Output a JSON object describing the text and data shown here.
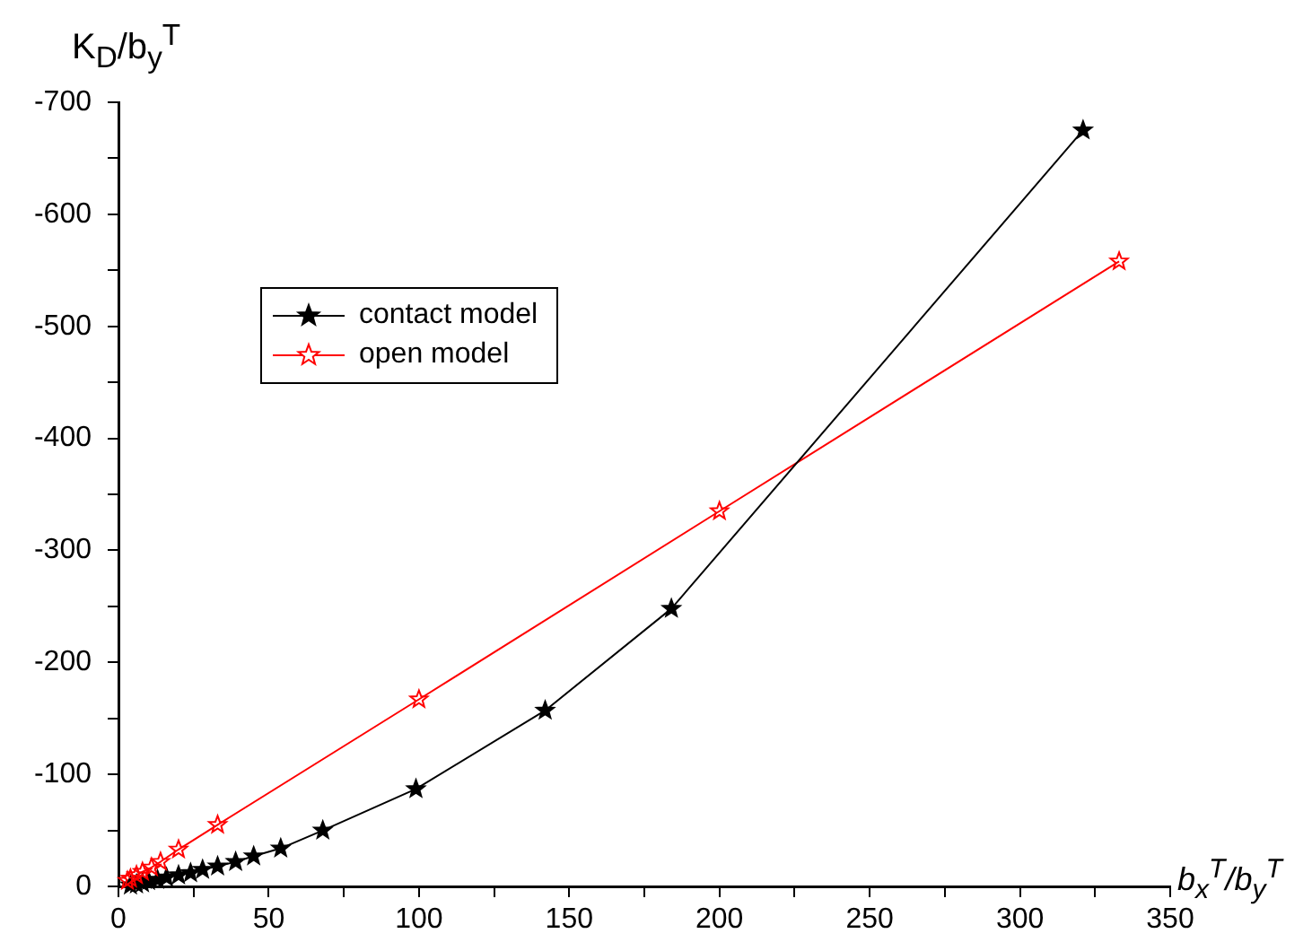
{
  "chart_data": {
    "type": "line",
    "xlabel": "b$_{x}$$^{T}$/b$_{y}$$^{T}$",
    "ylabel": "K$_{D}$/b$_{y}$$^{T}$",
    "xlim": [
      0,
      350
    ],
    "ylim": [
      0,
      -700
    ],
    "xticks": [
      0,
      {
        "value": 25,
        "label": null
      },
      50,
      {
        "value": 75,
        "label": null
      },
      100,
      {
        "value": 125,
        "label": null
      },
      150,
      {
        "value": 175,
        "label": null
      },
      200,
      {
        "value": 225,
        "label": null
      },
      250,
      {
        "value": 275,
        "label": null
      },
      300,
      {
        "value": 325,
        "label": null
      },
      350
    ],
    "yticks": [
      0,
      {
        "value": -50,
        "label": null
      },
      -100,
      {
        "value": -150,
        "label": null
      },
      -200,
      {
        "value": -250,
        "label": null
      },
      -300,
      {
        "value": -350,
        "label": null
      },
      -400,
      {
        "value": -450,
        "label": null
      },
      -500,
      {
        "value": -550,
        "label": null
      },
      -600,
      {
        "value": -650,
        "label": null
      },
      -700
    ],
    "grid": false,
    "legend": "top left",
    "marker": "star",
    "line_style": "solid",
    "series": [
      {
        "name": "contact model",
        "color": "#000000",
        "x": [
          4,
          6,
          8,
          10,
          13,
          16,
          20,
          24,
          28,
          33,
          39,
          45,
          54,
          68,
          99,
          142,
          184,
          321
        ],
        "values": [
          -1,
          -2,
          -3,
          -5,
          -6,
          -8,
          -10,
          -12,
          -15,
          -18,
          -22,
          -27,
          -34,
          -50,
          -87,
          -157,
          -248,
          -675
        ]
      },
      {
        "name": "open model",
        "color": "#ff0000",
        "x": [
          3,
          4,
          6,
          8,
          11,
          14,
          20,
          33,
          100,
          200,
          333
        ],
        "values": [
          -5,
          -7,
          -10,
          -13,
          -17,
          -22,
          -33,
          -55,
          -167,
          -335,
          -558
        ]
      }
    ]
  }
}
